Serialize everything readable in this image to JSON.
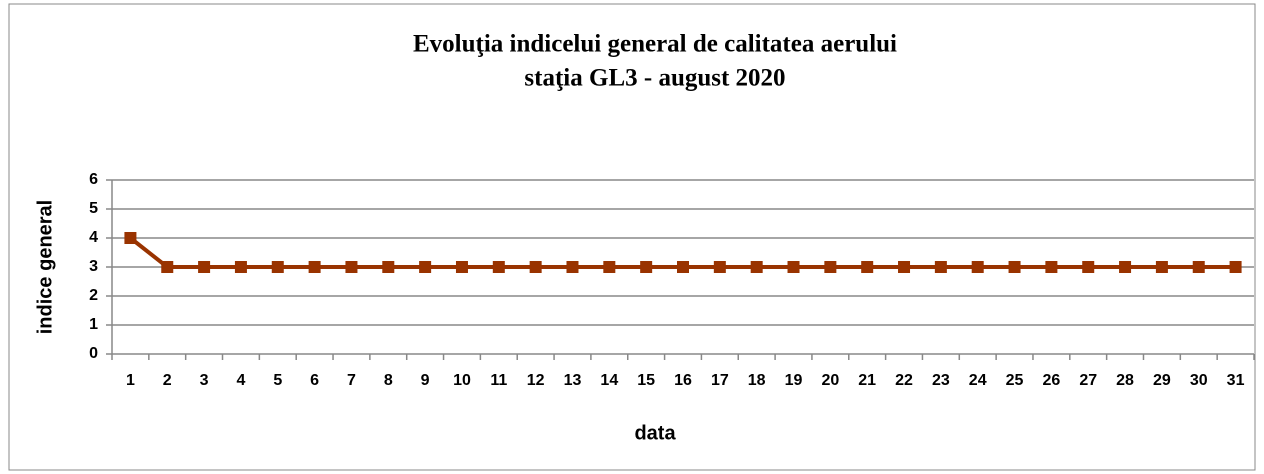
{
  "chart_data": {
    "type": "line",
    "title": "Evoluţia indicelui general de calitatea aerului",
    "subtitle": "staţia GL3 - august 2020",
    "x_label": "data",
    "y_label": "indice general",
    "categories": [
      "1",
      "2",
      "3",
      "4",
      "5",
      "6",
      "7",
      "8",
      "9",
      "10",
      "11",
      "12",
      "13",
      "14",
      "15",
      "16",
      "17",
      "18",
      "19",
      "20",
      "21",
      "22",
      "23",
      "24",
      "25",
      "26",
      "27",
      "28",
      "29",
      "30",
      "31"
    ],
    "series": [
      {
        "name": "indice general",
        "color": "#993300",
        "values": [
          4,
          3,
          3,
          3,
          3,
          3,
          3,
          3,
          3,
          3,
          3,
          3,
          3,
          3,
          3,
          3,
          3,
          3,
          3,
          3,
          3,
          3,
          3,
          3,
          3,
          3,
          3,
          3,
          3,
          3,
          3
        ]
      }
    ],
    "ylim": [
      0,
      6
    ],
    "yticks": [
      0,
      1,
      2,
      3,
      4,
      5,
      6
    ],
    "grid": true
  }
}
